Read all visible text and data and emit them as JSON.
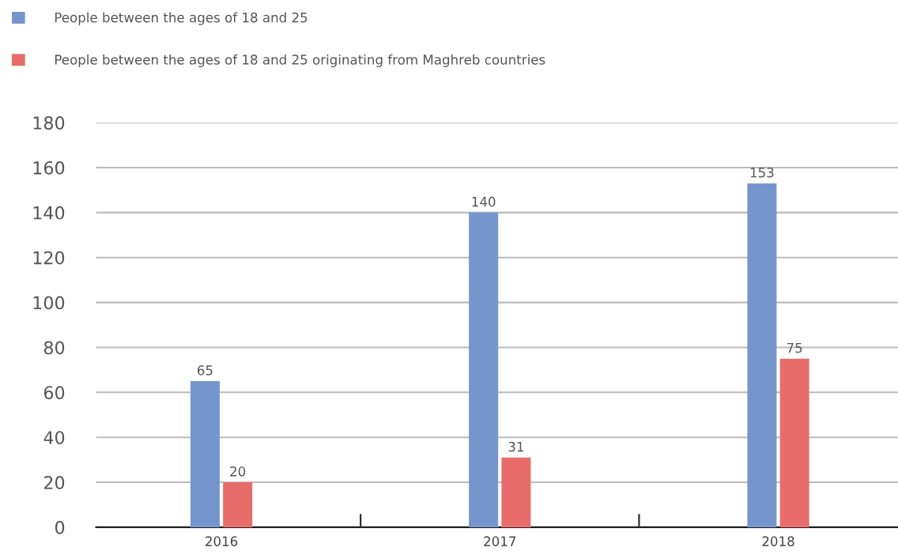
{
  "chart_data": {
    "type": "bar",
    "categories": [
      "2016",
      "2017",
      "2018"
    ],
    "series": [
      {
        "name": "People between the ages of 18 and 25",
        "color": "#7596cc",
        "values": [
          65,
          140,
          153
        ]
      },
      {
        "name": "People between the ages of 18 and 25 originating from Maghreb countries",
        "color": "#e86c6a",
        "values": [
          20,
          31,
          75
        ]
      }
    ],
    "ylim": [
      0,
      180
    ],
    "yticks": [
      0,
      20,
      40,
      60,
      80,
      100,
      120,
      140,
      160,
      180
    ],
    "grid": "y",
    "legend": "top left",
    "data_labels": true
  }
}
